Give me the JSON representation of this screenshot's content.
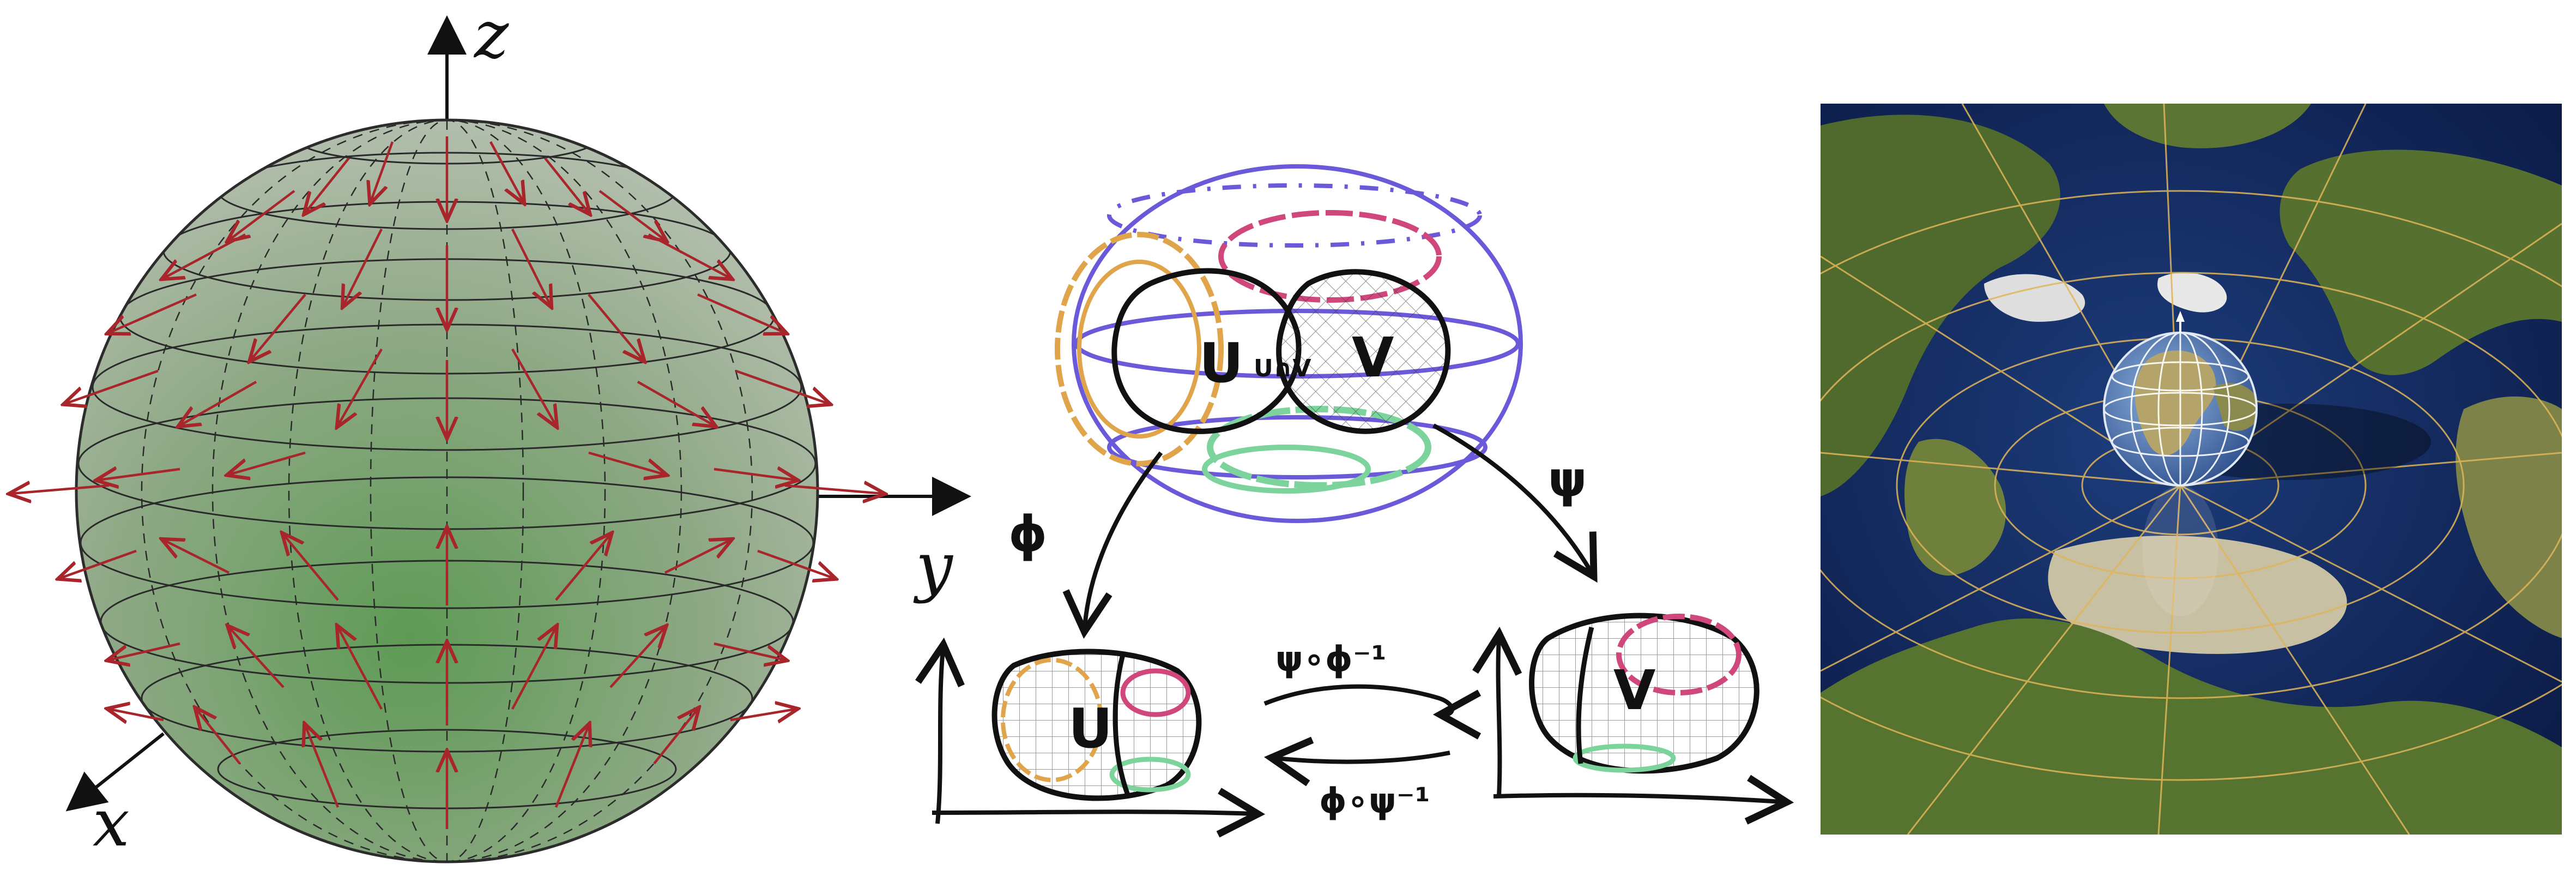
{
  "sphere_panel": {
    "axis_x": "x",
    "axis_y": "y",
    "axis_z": "z"
  },
  "charts_panel": {
    "chart_u": "U",
    "chart_v": "V",
    "overlap": "U∩V",
    "map_phi": "ϕ",
    "map_psi": "ψ",
    "transition_forward": "ψ∘ϕ⁻¹",
    "transition_backward": "ϕ∘ψ⁻¹",
    "u_image": "U",
    "v_image": "V"
  },
  "map_panel": {}
}
